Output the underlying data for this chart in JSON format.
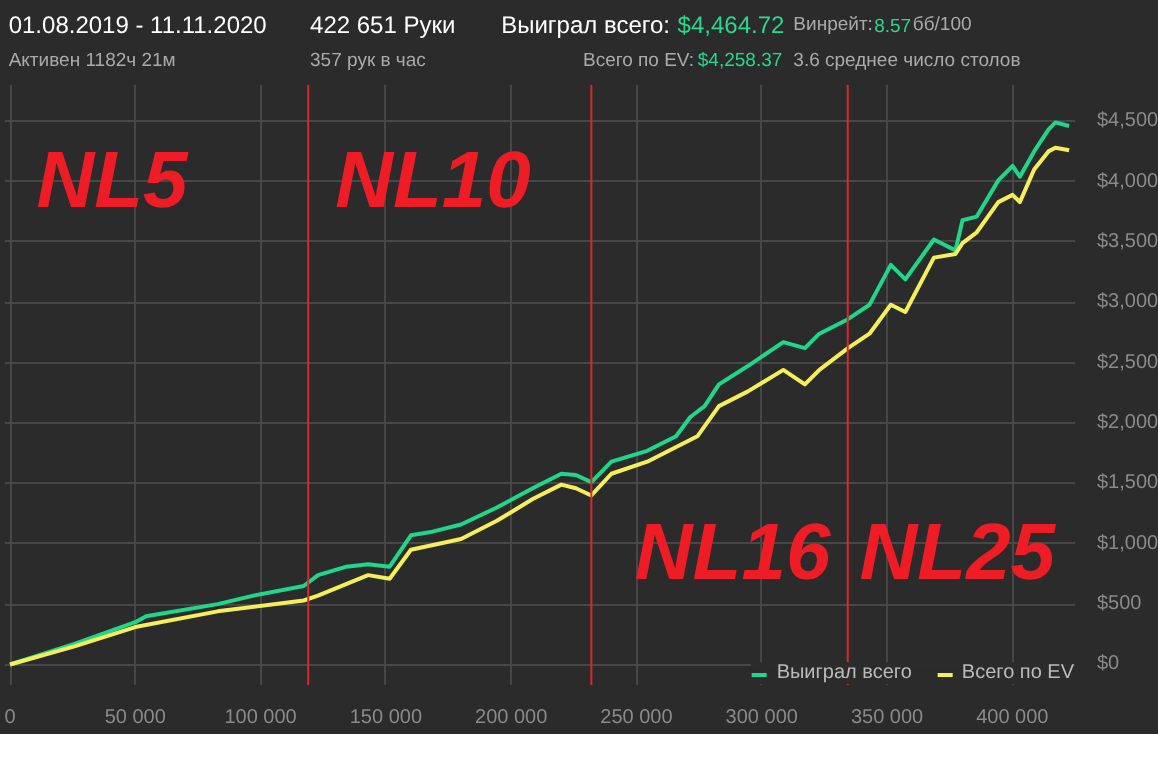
{
  "chart_data": {
    "type": "line",
    "title": "01.08.2019 - 11.11.2020",
    "subtitle": "Активен 1182ч 21м",
    "annotations": [
      "422 651 Руки",
      "357 рук в час",
      "Выиграл всего:",
      "$4,464.72",
      "Винрейт:",
      "8.57",
      "бб/100",
      "Всего по EV:",
      "$4,258.37",
      "3.6 среднее число столов",
      "NL5",
      "NL10",
      "NL16",
      "NL25"
    ],
    "series": [
      {
        "name": "Выиграл всего",
        "color": "#1fd68a",
        "x": [
          0,
          25700,
          50000,
          54300,
          82900,
          97200,
          117200,
          122900,
          134300,
          142900,
          151500,
          160000,
          168600,
          180000,
          194300,
          208600,
          220000,
          225800,
          232000,
          240000,
          254300,
          265800,
          271500,
          277200,
          282900,
          294300,
          308600,
          317200,
          323000,
          334400,
          343000,
          351500,
          357300,
          368700,
          377300,
          380100,
          385800,
          394400,
          400100,
          403000,
          408700,
          414400,
          417200,
          422651
        ],
        "values": [
          0,
          170,
          350,
          400,
          500,
          570,
          650,
          740,
          810,
          830,
          810,
          1070,
          1100,
          1160,
          1300,
          1460,
          1580,
          1570,
          1510,
          1680,
          1770,
          1890,
          2050,
          2140,
          2320,
          2470,
          2670,
          2620,
          2740,
          2860,
          2980,
          3310,
          3190,
          3520,
          3430,
          3680,
          3710,
          4010,
          4130,
          4040,
          4250,
          4430,
          4490,
          4460
        ]
      },
      {
        "name": "Всего по EV",
        "color": "#f5f05a",
        "x": [
          0,
          25700,
          50000,
          82900,
          117200,
          122900,
          142900,
          151500,
          160000,
          180000,
          194300,
          208600,
          220000,
          225800,
          232000,
          240000,
          254300,
          274300,
          282900,
          294300,
          308600,
          317200,
          323000,
          334400,
          343000,
          351500,
          357300,
          368700,
          377300,
          380100,
          385800,
          394400,
          400100,
          403000,
          408700,
          414400,
          417200,
          422651
        ],
        "values": [
          0,
          150,
          310,
          440,
          530,
          570,
          740,
          710,
          950,
          1040,
          1190,
          1370,
          1490,
          1460,
          1400,
          1580,
          1680,
          1890,
          2140,
          2260,
          2440,
          2320,
          2440,
          2620,
          2740,
          2980,
          2920,
          3370,
          3400,
          3490,
          3580,
          3830,
          3890,
          3830,
          4100,
          4250,
          4280,
          4260
        ]
      }
    ],
    "xlim": [
      -2000,
      425000
    ],
    "ylim": [
      -170,
      4800
    ],
    "xticks": [
      {
        "value": 0,
        "label": "0"
      },
      {
        "value": 50000,
        "label": "50 000"
      },
      {
        "value": 100000,
        "label": "100 000"
      },
      {
        "value": 150000,
        "label": "150 000"
      },
      {
        "value": 200000,
        "label": "200 000"
      },
      {
        "value": 250000,
        "label": "250 000"
      },
      {
        "value": 300000,
        "label": "300 000"
      },
      {
        "value": 350000,
        "label": "350 000"
      },
      {
        "value": 400000,
        "label": "400 000"
      }
    ],
    "yticks": [
      {
        "value": 0,
        "label": "$0"
      },
      {
        "value": 500,
        "label": "$500"
      },
      {
        "value": 1000,
        "label": "$1,000"
      },
      {
        "value": 1500,
        "label": "$1,500"
      },
      {
        "value": 2000,
        "label": "$2,000"
      },
      {
        "value": 2500,
        "label": "$2,500"
      },
      {
        "value": 3000,
        "label": "$3,000"
      },
      {
        "value": 3500,
        "label": "$3,500"
      },
      {
        "value": 4000,
        "label": "$4,000"
      },
      {
        "value": 4500,
        "label": "$4,500"
      }
    ],
    "ref_lines": [
      {
        "axis": "x",
        "value": 119000,
        "color": "#d82a2a"
      },
      {
        "axis": "x",
        "value": 232000,
        "color": "#d82a2a"
      },
      {
        "axis": "x",
        "value": 334300,
        "color": "#d82a2a"
      }
    ],
    "grid": true,
    "legend": "bottom right",
    "marker": "none",
    "line_style": "solid"
  }
}
